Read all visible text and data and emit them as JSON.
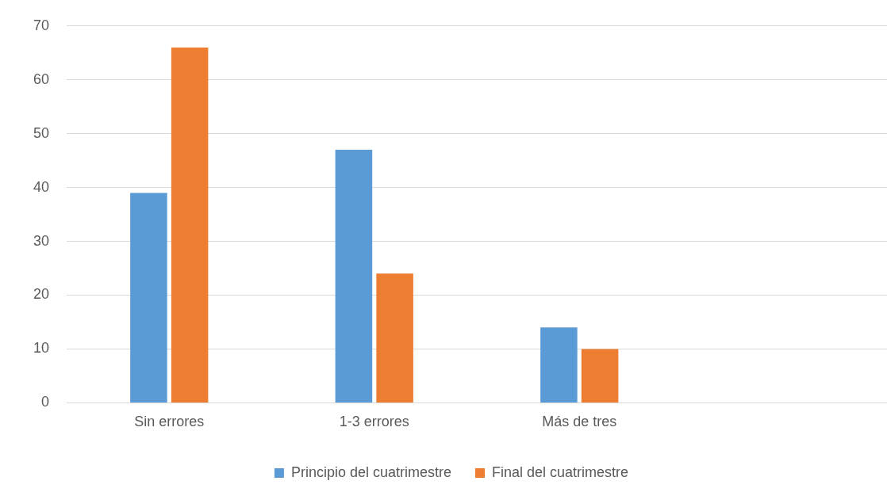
{
  "chart_data": {
    "type": "bar",
    "categories": [
      "Sin errores",
      "1-3 errores",
      "Más de tres",
      null
    ],
    "series": [
      {
        "name": "Principio del cuatrimestre",
        "color": "#5b9bd5",
        "values": [
          39,
          47,
          14,
          null
        ]
      },
      {
        "name": "Final del cuatrimestre",
        "color": "#ed7d31",
        "values": [
          66,
          24,
          10,
          null
        ]
      }
    ],
    "ylim": [
      0,
      70
    ],
    "yticks": [
      0,
      10,
      20,
      30,
      40,
      50,
      60,
      70
    ],
    "grid": "y",
    "legend": "bottom"
  }
}
